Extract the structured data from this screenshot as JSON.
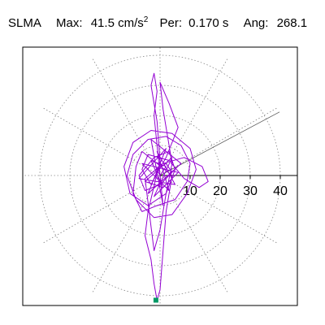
{
  "header": {
    "station": "SLMA",
    "max_label": "Max:",
    "max_value": "41.5 cm/s",
    "max_exponent": "2",
    "per_label": "Per:",
    "per_value": "0.170 s",
    "ang_label": "Ang:",
    "ang_value": "268.1"
  },
  "chart_data": {
    "type": "polar-particle-motion",
    "title": "",
    "radial_ticks": [
      10,
      20,
      30,
      40
    ],
    "radial_max": 45,
    "angular_grid_step_deg": 30,
    "angle_line_deg": 28,
    "grid": true,
    "trace_color": "#9400d3",
    "marker_color": "#009966",
    "max_marker": {
      "r": 41.5,
      "angle_deg": 268.1
    },
    "trace_points": [
      [
        0,
        0
      ],
      [
        2,
        3
      ],
      [
        -3,
        5
      ],
      [
        1,
        -4
      ],
      [
        -5,
        -2
      ],
      [
        4,
        6
      ],
      [
        -2,
        -7
      ],
      [
        6,
        1
      ],
      [
        -6,
        4
      ],
      [
        3,
        -5
      ],
      [
        -1,
        8
      ],
      [
        5,
        -3
      ],
      [
        -7,
        -1
      ],
      [
        2,
        9
      ],
      [
        -4,
        -6
      ],
      [
        7,
        4
      ],
      [
        -3,
        12
      ],
      [
        1,
        -10
      ],
      [
        -2,
        20
      ],
      [
        -1,
        28
      ],
      [
        -2,
        34
      ],
      [
        -3,
        30
      ],
      [
        -1,
        18
      ],
      [
        0,
        5
      ],
      [
        -4,
        -12
      ],
      [
        -5,
        -20
      ],
      [
        -3,
        -28
      ],
      [
        -2,
        -36
      ],
      [
        -1,
        -41.5
      ],
      [
        0,
        -38
      ],
      [
        1,
        -25
      ],
      [
        2,
        -12
      ],
      [
        4,
        0
      ],
      [
        -6,
        8
      ],
      [
        -8,
        3
      ],
      [
        -9,
        -6
      ],
      [
        -6,
        -12
      ],
      [
        -1,
        -10
      ],
      [
        5,
        -8
      ],
      [
        9,
        -2
      ],
      [
        10,
        4
      ],
      [
        7,
        10
      ],
      [
        2,
        13
      ],
      [
        -4,
        12
      ],
      [
        -9,
        7
      ],
      [
        -11,
        0
      ],
      [
        -8,
        -8
      ],
      [
        -2,
        -14
      ],
      [
        4,
        -13
      ],
      [
        9,
        -6
      ],
      [
        12,
        2
      ],
      [
        10,
        9
      ],
      [
        4,
        14
      ],
      [
        -3,
        15
      ],
      [
        -9,
        11
      ],
      [
        -12,
        3
      ],
      [
        -10,
        -6
      ],
      [
        -4,
        -10
      ],
      [
        2,
        -6
      ],
      [
        4,
        4
      ],
      [
        1,
        22
      ],
      [
        0,
        31
      ],
      [
        3,
        24
      ],
      [
        6,
        16
      ],
      [
        2,
        6
      ],
      [
        -3,
        -3
      ],
      [
        -6,
        2
      ],
      [
        -4,
        7
      ],
      [
        3,
        5
      ],
      [
        8,
        -1
      ],
      [
        13,
        -4
      ],
      [
        16,
        -2
      ],
      [
        14,
        3
      ],
      [
        8,
        6
      ],
      [
        1,
        4
      ],
      [
        -5,
        -1
      ],
      [
        -3,
        -17
      ],
      [
        -2,
        -25
      ],
      [
        0,
        -18
      ],
      [
        2,
        -6
      ],
      [
        5,
        2
      ],
      [
        3,
        8
      ],
      [
        -2,
        6
      ],
      [
        -7,
        0
      ],
      [
        -5,
        -5
      ],
      [
        0,
        -3
      ],
      [
        4,
        1
      ],
      [
        2,
        4
      ],
      [
        -1,
        2
      ],
      [
        0,
        0
      ]
    ]
  }
}
